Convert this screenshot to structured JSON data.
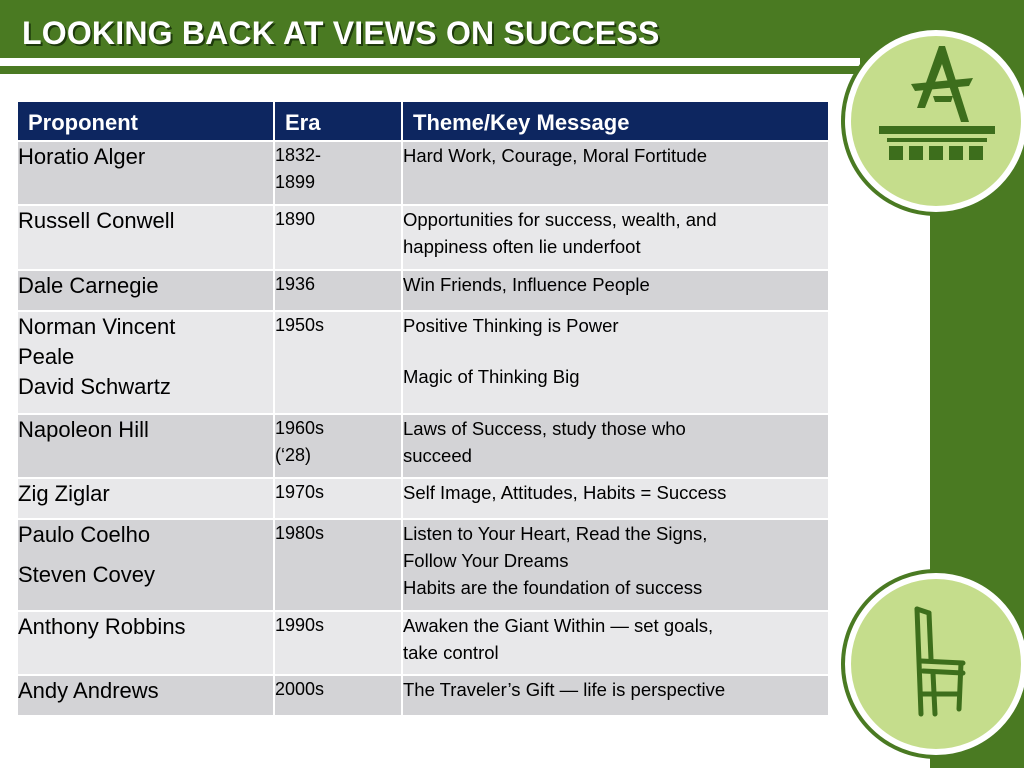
{
  "slide": {
    "title": "LOOKING BACK AT VIEWS ON SUCCESS",
    "colors": {
      "header_green": "#4a7a22",
      "table_header": "#0d2660",
      "row_dark": "#d3d3d6",
      "row_light": "#e8e8ea",
      "circle": "#c5dd8c"
    },
    "icons": {
      "logo": "andrews-logo-icon",
      "chair": "chair-icon"
    }
  },
  "table": {
    "headers": [
      "Proponent",
      "Era",
      "Theme/Key Message"
    ],
    "rows": [
      {
        "name": [
          "Horatio Alger"
        ],
        "era": [
          "1832-",
          "1899"
        ],
        "theme": [
          "Hard Work, Courage, Moral Fortitude"
        ]
      },
      {
        "name": [
          "Russell Conwell"
        ],
        "era": [
          "1890"
        ],
        "theme": [
          "Opportunities for success, wealth, and",
          "happiness often lie underfoot"
        ]
      },
      {
        "name": [
          "Dale Carnegie"
        ],
        "era": [
          "1936"
        ],
        "theme": [
          "Win Friends, Influence People"
        ]
      },
      {
        "name": [
          "Norman Vincent",
          "Peale",
          "David Schwartz"
        ],
        "era": [
          "1950s"
        ],
        "theme": [
          "Positive Thinking is Power",
          "Magic of Thinking Big"
        ]
      },
      {
        "name": [
          "Napoleon Hill"
        ],
        "era": [
          "1960s",
          "(‘28)"
        ],
        "theme": [
          "Laws of Success, study those who",
          "succeed"
        ]
      },
      {
        "name": [
          "Zig Ziglar"
        ],
        "era": [
          "1970s"
        ],
        "theme": [
          "Self Image, Attitudes, Habits = Success"
        ]
      },
      {
        "name": [
          "Paulo Coelho",
          "Steven Covey"
        ],
        "era": [
          "1980s"
        ],
        "theme": [
          "Listen to Your Heart, Read the Signs,",
          "Follow Your Dreams",
          "Habits are the foundation of success"
        ]
      },
      {
        "name": [
          "Anthony Robbins"
        ],
        "era": [
          "1990s"
        ],
        "theme": [
          "Awaken the Giant Within — set goals,",
          "take control"
        ]
      },
      {
        "name": [
          "Andy Andrews"
        ],
        "era": [
          "2000s"
        ],
        "theme": [
          "The Traveler’s Gift — life is perspective"
        ]
      }
    ]
  }
}
